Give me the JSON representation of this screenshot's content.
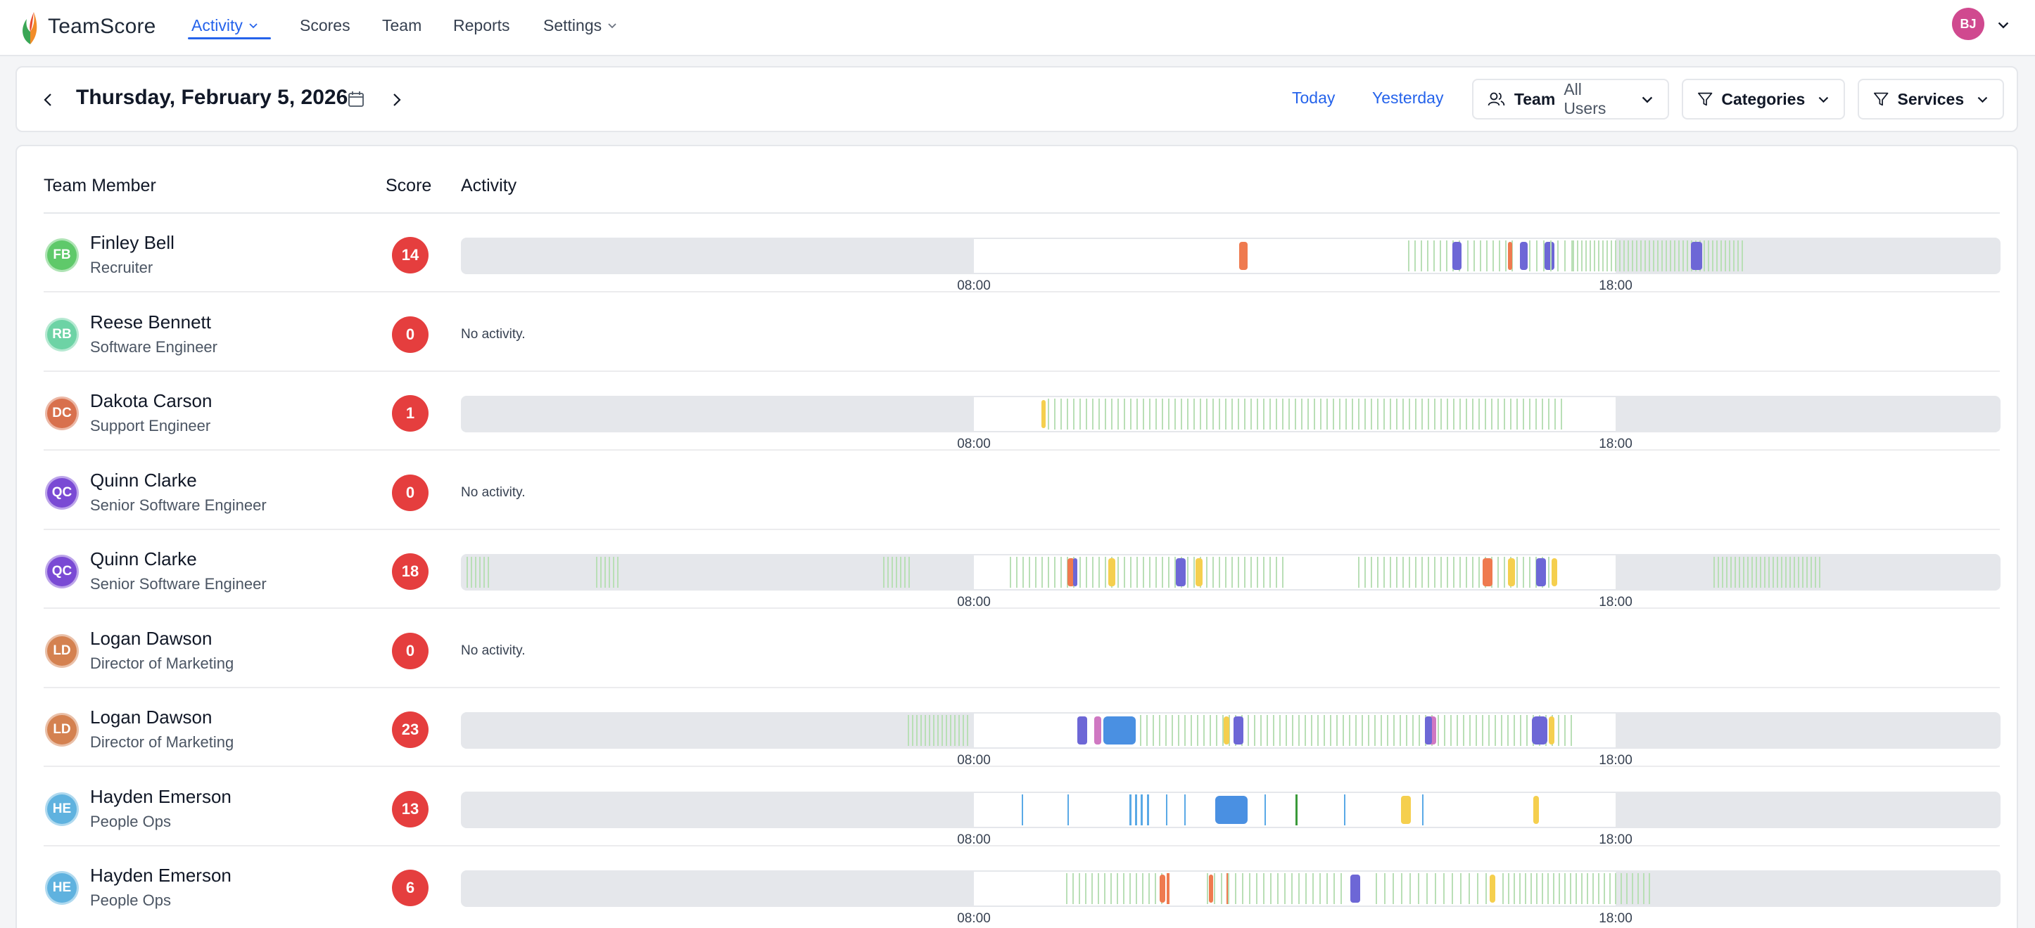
{
  "app": {
    "name": "TeamScore"
  },
  "nav": {
    "items": [
      {
        "label": "Activity",
        "active": true,
        "has_dropdown": true
      },
      {
        "label": "Scores"
      },
      {
        "label": "Team"
      },
      {
        "label": "Reports"
      },
      {
        "label": "Settings",
        "has_dropdown": true
      }
    ],
    "user_initials": "BJ"
  },
  "datebar": {
    "date": "Thursday, February 5, 2026",
    "today": "Today",
    "yesterday": "Yesterday",
    "team_label": "Team",
    "team_value": "All Users",
    "categories_label": "Categories",
    "services_label": "Services"
  },
  "table": {
    "headers": {
      "member": "Team Member",
      "score": "Score",
      "activity": "Activity"
    },
    "no_activity": "No activity.",
    "axis_ticks": [
      "08:00",
      "18:00"
    ],
    "colors": {
      "light_green": "#b9dfb6",
      "orange": "#ef7a4f",
      "purple": "#6d67d6",
      "yellow": "#f5cf4e",
      "pink": "#cf78c2",
      "blue": "#4a90e2",
      "green": "#3a9a3a",
      "light_blue": "#5aa9e6"
    },
    "rows": [
      {
        "initials": "FB",
        "avatar_color": "#5fc96a",
        "name": "Finley Bell",
        "role": "Recruiter",
        "score": "14",
        "has_activity": true
      },
      {
        "initials": "RB",
        "avatar_color": "#6dd3a5",
        "name": "Reese Bennett",
        "role": "Software Engineer",
        "score": "0",
        "has_activity": false
      },
      {
        "initials": "DC",
        "avatar_color": "#d8704d",
        "name": "Dakota Carson",
        "role": "Support Engineer",
        "score": "1",
        "has_activity": true
      },
      {
        "initials": "QC",
        "avatar_color": "#7a4ad4",
        "name": "Quinn Clarke",
        "role": "Senior Software Engineer",
        "score": "0",
        "has_activity": false
      },
      {
        "initials": "QC",
        "avatar_color": "#7a4ad4",
        "name": "Quinn Clarke",
        "role": "Senior Software Engineer",
        "score": "18",
        "has_activity": true
      },
      {
        "initials": "LD",
        "avatar_color": "#d48150",
        "name": "Logan Dawson",
        "role": "Director of Marketing",
        "score": "0",
        "has_activity": false
      },
      {
        "initials": "LD",
        "avatar_color": "#d48150",
        "name": "Logan Dawson",
        "role": "Director of Marketing",
        "score": "23",
        "has_activity": true
      },
      {
        "initials": "HE",
        "avatar_color": "#5fb2df",
        "name": "Hayden Emerson",
        "role": "People Ops",
        "score": "13",
        "has_activity": true
      },
      {
        "initials": "HE",
        "avatar_color": "#5fb2df",
        "name": "Hayden Emerson",
        "role": "People Ops",
        "score": "6",
        "has_activity": true
      }
    ]
  },
  "icons": {
    "prev": "chevron-left-icon",
    "next": "chevron-right-icon",
    "calendar": "calendar-icon",
    "team": "users-icon",
    "filter": "filter-icon",
    "dropdown": "chevron-down-icon"
  }
}
